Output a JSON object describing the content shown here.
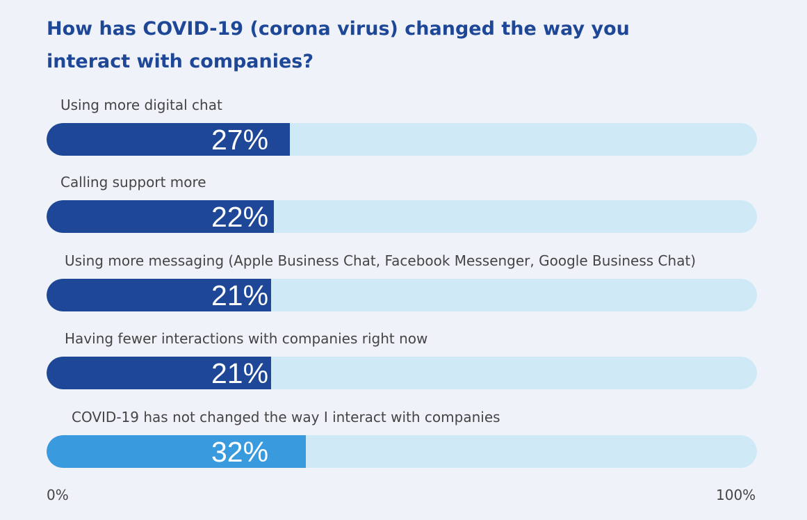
{
  "chart_data": {
    "type": "bar",
    "orientation": "horizontal",
    "title": "How has COVID-19 (corona virus) changed the way you interact with companies?",
    "categories": [
      "Using more digital chat",
      "Calling support more",
      "Using more messaging (Apple Business Chat, Facebook Messenger, Google Business Chat)",
      "Having fewer interactions with companies right now",
      "COVID-19 has not changed the way I interact with companies"
    ],
    "values": [
      27,
      22,
      21,
      21,
      32
    ],
    "value_labels": [
      "27%",
      "22%",
      "21%",
      "21%",
      "32%"
    ],
    "colors": [
      "#1f4797",
      "#1f4797",
      "#1f4797",
      "#1f4797",
      "#3a9ade"
    ],
    "track_color": "#cfe9f7",
    "xlim": [
      0,
      100
    ],
    "x_ticks": [
      "0%",
      "100%"
    ],
    "xlabel": "",
    "ylabel": ""
  }
}
